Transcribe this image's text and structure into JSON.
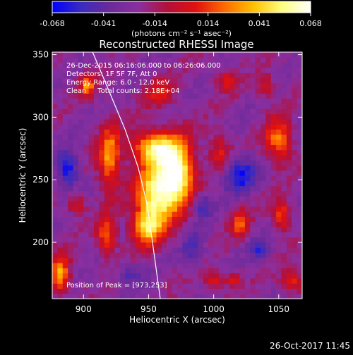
{
  "colors": {
    "background": "#000000",
    "foreground": "#ffffff",
    "colormap": [
      "#0000ff",
      "#3a2bbf",
      "#6b2a9a",
      "#8a2fa0",
      "#b3103a",
      "#e01010",
      "#ff6a00",
      "#ffc000",
      "#ffff80",
      "#ffffff"
    ]
  },
  "colorbar": {
    "tick_labels": [
      "-0.068",
      "-0.041",
      "-0.014",
      "0.014",
      "0.041",
      "0.068"
    ],
    "min": -0.068,
    "max": 0.068,
    "units_line": "(photons cm⁻² s⁻¹ asec⁻²)"
  },
  "chart_data": {
    "type": "heatmap",
    "title": "Reconstructed RHESSI Image",
    "xlabel": "Heliocentric X (arcsec)",
    "ylabel": "Heliocentric Y (arcsec)",
    "xlim": [
      876,
      1068
    ],
    "ylim": [
      155,
      352
    ],
    "x_ticks": [
      "900",
      "950",
      "1000",
      "1050"
    ],
    "y_ticks": [
      "200",
      "250",
      "300",
      "350"
    ],
    "annotation_lines": [
      "26-Dec-2015 06:16:06.000 to 06:26:06.000",
      "Detectors: 1F 5F 7F, Att 0",
      "Energy Range: 6.0 - 12.0 keV",
      "Clean     Total counts: 2.18E+04"
    ],
    "peak_text": "Position of Peak = [973,253]",
    "peak": [
      973,
      253
    ],
    "limb_curve": [
      [
        907,
        352
      ],
      [
        920,
        320
      ],
      [
        932,
        290
      ],
      [
        942,
        260
      ],
      [
        949,
        230
      ],
      [
        953,
        200
      ],
      [
        957,
        170
      ],
      [
        959,
        155
      ]
    ],
    "sources": [
      {
        "x": 972,
        "y": 255,
        "sx": 9,
        "sy": 18,
        "amp": 1.0
      },
      {
        "x": 954,
        "y": 276,
        "sx": 11,
        "sy": 9,
        "amp": 0.75
      },
      {
        "x": 955,
        "y": 238,
        "sx": 10,
        "sy": 18,
        "amp": 0.85
      },
      {
        "x": 948,
        "y": 212,
        "sx": 8,
        "sy": 10,
        "amp": 0.6
      },
      {
        "x": 920,
        "y": 268,
        "sx": 6,
        "sy": 18,
        "amp": 0.6
      },
      {
        "x": 918,
        "y": 205,
        "sx": 5,
        "sy": 11,
        "amp": 0.5
      },
      {
        "x": 882,
        "y": 175,
        "sx": 5,
        "sy": 10,
        "amp": 0.65
      },
      {
        "x": 903,
        "y": 325,
        "sx": 4,
        "sy": 6,
        "amp": 0.55
      },
      {
        "x": 1050,
        "y": 282,
        "sx": 7,
        "sy": 12,
        "amp": 0.55
      },
      {
        "x": 1005,
        "y": 272,
        "sx": 6,
        "sy": 10,
        "amp": 0.35
      },
      {
        "x": 1020,
        "y": 215,
        "sx": 5,
        "sy": 8,
        "amp": 0.4
      },
      {
        "x": 1052,
        "y": 222,
        "sx": 5,
        "sy": 8,
        "amp": 0.45
      },
      {
        "x": 1060,
        "y": 170,
        "sx": 6,
        "sy": 6,
        "amp": 0.4
      },
      {
        "x": 1000,
        "y": 170,
        "sx": 5,
        "sy": 5,
        "amp": 0.35
      },
      {
        "x": 1015,
        "y": 170,
        "sx": 4,
        "sy": 4,
        "amp": 0.35
      },
      {
        "x": 958,
        "y": 320,
        "sx": 8,
        "sy": 8,
        "amp": 0.3
      },
      {
        "x": 1010,
        "y": 330,
        "sx": 6,
        "sy": 6,
        "amp": 0.3
      },
      {
        "x": 1040,
        "y": 325,
        "sx": 5,
        "sy": 6,
        "amp": 0.3
      },
      {
        "x": 895,
        "y": 230,
        "sx": 5,
        "sy": 6,
        "amp": 0.3
      }
    ],
    "negative_regions": [
      {
        "x": 888,
        "y": 258,
        "sx": 6,
        "sy": 10,
        "amp": 0.45
      },
      {
        "x": 1020,
        "y": 255,
        "sx": 9,
        "sy": 10,
        "amp": 0.45
      },
      {
        "x": 990,
        "y": 230,
        "sx": 6,
        "sy": 8,
        "amp": 0.3
      },
      {
        "x": 985,
        "y": 195,
        "sx": 6,
        "sy": 10,
        "amp": 0.25
      },
      {
        "x": 1035,
        "y": 195,
        "sx": 6,
        "sy": 6,
        "amp": 0.3
      },
      {
        "x": 935,
        "y": 175,
        "sx": 7,
        "sy": 6,
        "amp": 0.25
      }
    ]
  },
  "footer": {
    "timestamp": "26-Oct-2017 11:45"
  }
}
